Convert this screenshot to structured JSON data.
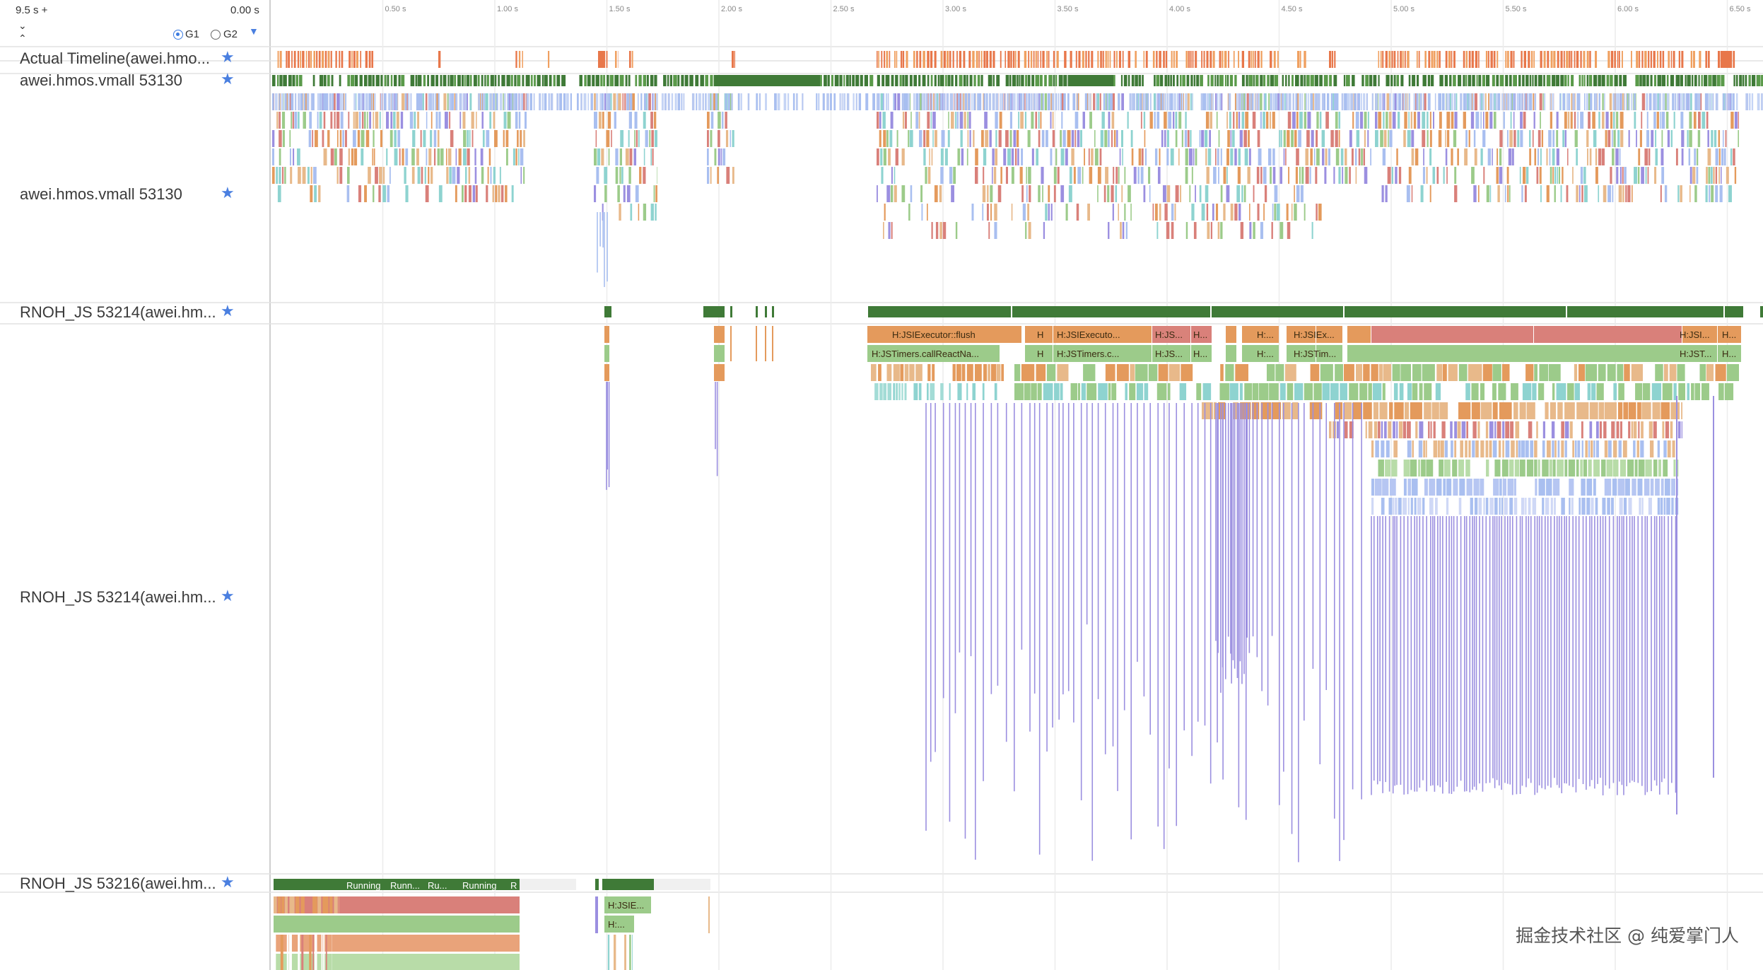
{
  "header": {
    "range_label": "9.5 s +",
    "start_time": "0.00 s",
    "expand_icon": "chevron-down-icon",
    "collapse_icon": "chevron-up-icon",
    "groups": [
      {
        "label": "G1",
        "selected": true
      },
      {
        "label": "G2",
        "selected": false
      }
    ],
    "dropdown_icon": "caret-down-icon"
  },
  "ruler": {
    "ticks": [
      "0.50 s",
      "1.00 s",
      "1.50 s",
      "2.00 s",
      "2.50 s",
      "3.00 s",
      "3.50 s",
      "4.00 s",
      "4.50 s",
      "5.00 s",
      "5.50 s",
      "6.00 s",
      "6.50 s"
    ]
  },
  "tracks": [
    {
      "id": "actual_timeline",
      "label": "Actual Timeline(awei.hmo...",
      "star": "star-icon"
    },
    {
      "id": "vmall_state",
      "label": "awei.hmos.vmall 53130",
      "star": "star-icon"
    },
    {
      "id": "vmall_slices",
      "label": "awei.hmos.vmall 53130",
      "star": "star-icon"
    },
    {
      "id": "rnoh_js_state",
      "label": "RNOH_JS 53214(awei.hm...",
      "star": "star-icon"
    },
    {
      "id": "rnoh_js_slices",
      "label": "RNOH_JS 53214(awei.hm...",
      "star": "star-icon"
    },
    {
      "id": "rnoh_js2_state",
      "label": "RNOH_JS 53216(awei.hm...",
      "star": "star-icon"
    }
  ],
  "slice_labels": {
    "js_row1": [
      "H:JSIExecutor::flush",
      "H",
      "H:JSIExecuto...",
      "H:JS...",
      "H...",
      "H:...",
      "H:JSIEx...",
      "H:JSI...",
      "H..."
    ],
    "js_row2": [
      "H:JSTimers.callReactNa...",
      "H",
      "H:JSTimers.c...",
      "H:JS...",
      "H...",
      "H:...",
      "H:JSTim...",
      "H:JST...",
      "H..."
    ],
    "js2_state": [
      "Running",
      "Runn...",
      "Ru...",
      "Running",
      "R"
    ],
    "js2_row1": [
      "H:JSIE..."
    ],
    "js2_row2": [
      "H:..."
    ]
  },
  "colors": {
    "orange": "#e8774a",
    "dark_green": "#3f7a37",
    "slice_orange": "#e49a5c",
    "slice_green": "#9ccb8a",
    "slice_salmon": "#d9807a",
    "slice_teal": "#8ed3d0",
    "slice_blue": "#a9bff0",
    "slice_purple": "#9b8fe0",
    "slice_tan": "#e8b98a",
    "star_blue": "#4a7fe0"
  },
  "watermark": "掘金技术社区 @ 纯爱掌门人"
}
